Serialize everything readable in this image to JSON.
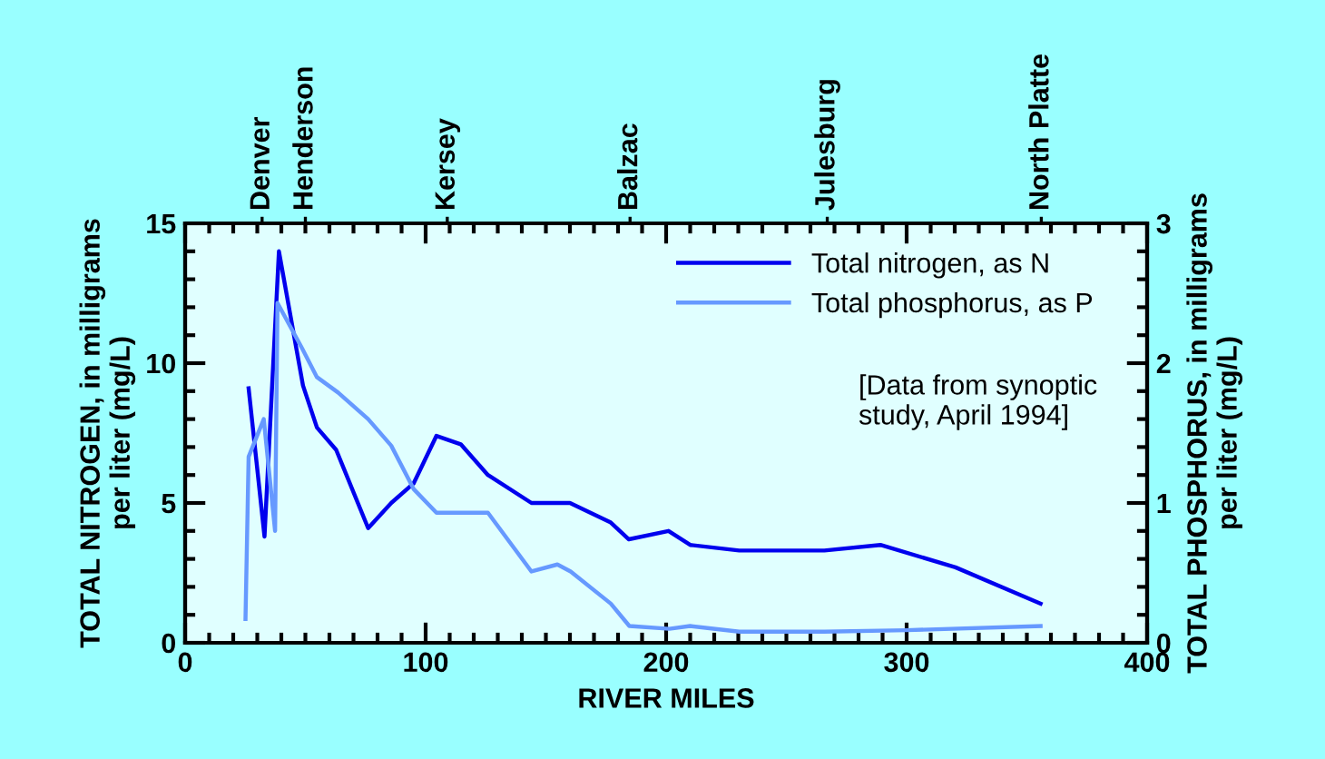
{
  "chart_data": {
    "type": "line",
    "xlabel": "RIVER MILES",
    "ylabel": "TOTAL NITROGEN, in milligrams\nper liter (mg/L)",
    "y2label": "TOTAL PHOSPHORUS, in milligrams\nper liter (mg/L)",
    "xlim": [
      0,
      400
    ],
    "xticks": [
      0,
      100,
      200,
      300,
      400
    ],
    "ylim": [
      0,
      15
    ],
    "yticks": [
      0,
      5,
      10,
      15
    ],
    "y2lim": [
      0,
      3
    ],
    "y2ticks": [
      0,
      1,
      2,
      3
    ],
    "grid": false,
    "legend": "top right",
    "line_style": "solid",
    "marker": "none",
    "annotations": [
      "[Data from synoptic\nstudy, April 1994]"
    ],
    "ref_lines": [
      {
        "axis": "x",
        "value": 32,
        "label": "Denver"
      },
      {
        "axis": "x",
        "value": 50,
        "label": "Henderson"
      },
      {
        "axis": "x",
        "value": 109,
        "label": "Kersey"
      },
      {
        "axis": "x",
        "value": 185,
        "label": "Balzac"
      },
      {
        "axis": "x",
        "value": 267,
        "label": "Julesburg"
      },
      {
        "axis": "x",
        "value": 356,
        "label": "North Platte"
      }
    ],
    "series": [
      {
        "name": "Total nitrogen, as N",
        "color": "#0000ee",
        "x": [
          26.4,
          33,
          39,
          49,
          54.8,
          62.8,
          76.1,
          85.7,
          95,
          104.5,
          114.6,
          125.9,
          144,
          160,
          177,
          184.5,
          201,
          210,
          230.4,
          265.8,
          289.1,
          320.3,
          355.7
        ],
        "values": [
          9.1,
          3.8,
          14.0,
          9.2,
          7.7,
          6.9,
          4.1,
          5.0,
          5.7,
          7.4,
          7.1,
          6.0,
          5.0,
          5.0,
          4.3,
          3.7,
          4.0,
          3.5,
          3.3,
          3.3,
          3.5,
          2.7,
          1.4
        ]
      },
      {
        "name": "Total phosphorus, as P",
        "color": "#6699ff",
        "axis": "y2",
        "x": [
          25.1,
          26.4,
          32.7,
          37.4,
          38.4,
          48.5,
          54.8,
          63.6,
          76.1,
          85.7,
          95,
          104.5,
          114.6,
          125.9,
          144,
          154.8,
          160.3,
          177,
          184.7,
          201.3,
          210,
          230.4,
          265.8,
          300,
          355.7
        ],
        "values": [
          0.17,
          1.33,
          1.6,
          0.8,
          2.43,
          2.11,
          1.9,
          1.79,
          1.6,
          1.41,
          1.1,
          0.93,
          0.93,
          0.93,
          0.51,
          0.56,
          0.51,
          0.28,
          0.12,
          0.1,
          0.12,
          0.08,
          0.08,
          0.09,
          0.12
        ]
      }
    ]
  }
}
